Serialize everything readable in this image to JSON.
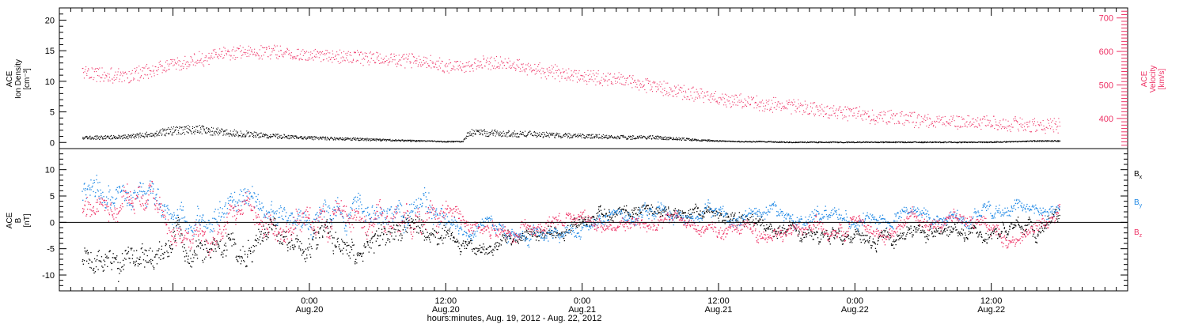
{
  "chart_data": [
    {
      "type": "scatter",
      "panel": "top",
      "ylabel_left_lines": [
        "ACE",
        "Ion Density",
        "[cm⁻³]"
      ],
      "ylabel_right_lines": [
        "ACE",
        "Velocity",
        "[km/s]"
      ],
      "ylim_left": [
        -1,
        22
      ],
      "ylim_right": [
        310,
        730
      ],
      "left_ticks": [
        "0",
        "5",
        "10",
        "15",
        "20"
      ],
      "left_tick_values": [
        0,
        5,
        10,
        15,
        20
      ],
      "right_ticks": [
        "400",
        "500",
        "600",
        "700"
      ],
      "right_tick_values": [
        400,
        500,
        600,
        700
      ],
      "velocity_color": "#ee3366",
      "density_color": "#000000",
      "series": [
        {
          "axis": "right",
          "x_hours": [
            -20,
            -18,
            -16,
            -14,
            -12,
            -10,
            -8,
            -6,
            -4,
            -2,
            0,
            2,
            4,
            6,
            8,
            10,
            12,
            14,
            16,
            18,
            20,
            22,
            24,
            26,
            28,
            30,
            32,
            34,
            36,
            38,
            40,
            42,
            44,
            46,
            48,
            50,
            52,
            54,
            56,
            58,
            60,
            62,
            64,
            66
          ],
          "values": [
            540,
            530,
            525,
            545,
            560,
            575,
            590,
            600,
            598,
            596,
            590,
            587,
            585,
            580,
            575,
            570,
            560,
            555,
            570,
            560,
            545,
            535,
            525,
            520,
            510,
            500,
            485,
            475,
            460,
            450,
            445,
            440,
            430,
            420,
            415,
            405,
            400,
            395,
            392,
            390,
            388,
            385,
            380,
            380
          ]
        },
        {
          "axis": "left",
          "x_hours": [
            -20,
            -18,
            -16,
            -14,
            -12,
            -10,
            -8,
            -6,
            -4,
            -2,
            0,
            2,
            4,
            6,
            8,
            10,
            12,
            13.5,
            14,
            16,
            18,
            20,
            22,
            24,
            26,
            28,
            30,
            32,
            34,
            36,
            38,
            40,
            42,
            44,
            46,
            48,
            50,
            52,
            54,
            56,
            58,
            60,
            62,
            64,
            66
          ],
          "values": [
            0.8,
            0.9,
            1.0,
            1.4,
            2.0,
            2.2,
            1.8,
            1.5,
            1.2,
            1.0,
            0.8,
            0.7,
            0.6,
            0.5,
            0.4,
            0.3,
            0.2,
            0.2,
            1.7,
            1.6,
            1.5,
            1.4,
            1.2,
            1.1,
            1.0,
            0.9,
            0.9,
            0.7,
            0.5,
            0.3,
            0.2,
            0.2,
            0.1,
            0.1,
            0.1,
            0.1,
            0.1,
            0.1,
            0.1,
            0.1,
            0.1,
            0.1,
            0.2,
            0.3,
            0.3
          ]
        }
      ]
    },
    {
      "type": "scatter",
      "panel": "bottom",
      "ylabel_left_lines": [
        "ACE",
        "B",
        "[nT]"
      ],
      "ylim": [
        -13,
        14
      ],
      "left_ticks": [
        "-10",
        "-5",
        "0",
        "5",
        "10"
      ],
      "left_tick_values": [
        -10,
        -5,
        0,
        5,
        10
      ],
      "zero_line": true,
      "legend": [
        {
          "label": "B",
          "sub": "x",
          "color": "#000000"
        },
        {
          "label": "B",
          "sub": "y",
          "color": "#1e88e5"
        },
        {
          "label": "B",
          "sub": "z",
          "color": "#ee3366"
        }
      ],
      "series": [
        {
          "name": "Bx",
          "color": "#000000",
          "x_hours": [
            -20,
            -18,
            -16,
            -14,
            -12,
            -10,
            -8,
            -6,
            -4,
            -2,
            0,
            2,
            4,
            6,
            8,
            10,
            12,
            14,
            16,
            18,
            20,
            22,
            24,
            26,
            28,
            30,
            32,
            34,
            36,
            38,
            40,
            42,
            44,
            46,
            48,
            50,
            52,
            54,
            56,
            58,
            60,
            62,
            64,
            66
          ],
          "values": [
            -7.5,
            -8,
            -7,
            -5,
            -4,
            -3.5,
            -4,
            -4.5,
            -3.5,
            -3,
            -3.5,
            -3,
            -3.5,
            -2.5,
            -3.5,
            -2,
            -2.5,
            -4.5,
            -4,
            -2,
            -1.5,
            -2,
            0.5,
            1.5,
            2.5,
            3,
            2,
            1.5,
            2.5,
            1,
            0.5,
            -1,
            -2,
            -2.5,
            -2.5,
            -3,
            -3,
            -3,
            -2.5,
            -2,
            -1.5,
            0,
            -1,
            1.5
          ]
        },
        {
          "name": "By",
          "color": "#1e88e5",
          "x_hours": [
            -20,
            -18,
            -16,
            -14,
            -12,
            -10,
            -8,
            -6,
            -4,
            -2,
            0,
            2,
            4,
            6,
            8,
            10,
            12,
            14,
            16,
            18,
            20,
            22,
            24,
            26,
            28,
            30,
            32,
            34,
            36,
            38,
            40,
            42,
            44,
            46,
            48,
            50,
            52,
            54,
            56,
            58,
            60,
            62,
            64,
            66
          ],
          "values": [
            6,
            5.5,
            5,
            5.5,
            2,
            1,
            2,
            3,
            2,
            3.5,
            2.5,
            3,
            3,
            2.5,
            2,
            2,
            1,
            -2,
            1,
            -1,
            -1.5,
            -2,
            0,
            1,
            2,
            2.5,
            1.5,
            2,
            2,
            1,
            1,
            0.5,
            1,
            2,
            1.5,
            1.5,
            2,
            2,
            1.5,
            2.5,
            2,
            3,
            2.5,
            3.5
          ]
        },
        {
          "name": "Bz",
          "color": "#ee3366",
          "x_hours": [
            -20,
            -18,
            -16,
            -14,
            -12,
            -10,
            -8,
            -6,
            -4,
            -2,
            0,
            2,
            4,
            6,
            8,
            10,
            12,
            14,
            16,
            18,
            20,
            22,
            24,
            26,
            28,
            30,
            32,
            34,
            36,
            38,
            40,
            42,
            44,
            46,
            48,
            50,
            52,
            54,
            56,
            58,
            60,
            62,
            64,
            66
          ],
          "values": [
            3,
            2,
            4,
            6,
            0,
            -2,
            -1,
            1,
            -2,
            -1,
            -0.5,
            0,
            1,
            -1,
            0.5,
            1,
            3,
            -1,
            -1,
            -2,
            -0.5,
            0,
            0.5,
            -1,
            -0.5,
            0,
            0.5,
            -1,
            -2,
            -1,
            -2,
            -1.5,
            -1,
            -1,
            0,
            -1.5,
            -1,
            0.5,
            -0.5,
            0,
            -0.5,
            -3,
            -1,
            3.5
          ]
        }
      ]
    }
  ],
  "x_axis": {
    "range_hours": [
      -22,
      72
    ],
    "ticks": [
      {
        "hour": 0,
        "time": "0:00",
        "date": "Aug.20"
      },
      {
        "hour": 12,
        "time": "12:00",
        "date": "Aug.20"
      },
      {
        "hour": 24,
        "time": "0:00",
        "date": "Aug.21"
      },
      {
        "hour": 36,
        "time": "12:00",
        "date": "Aug.21"
      },
      {
        "hour": 48,
        "time": "0:00",
        "date": "Aug.22"
      },
      {
        "hour": 60,
        "time": "12:00",
        "date": "Aug.22"
      }
    ],
    "title": "hours:minutes, Aug. 19, 2012 - Aug. 22, 2012"
  }
}
